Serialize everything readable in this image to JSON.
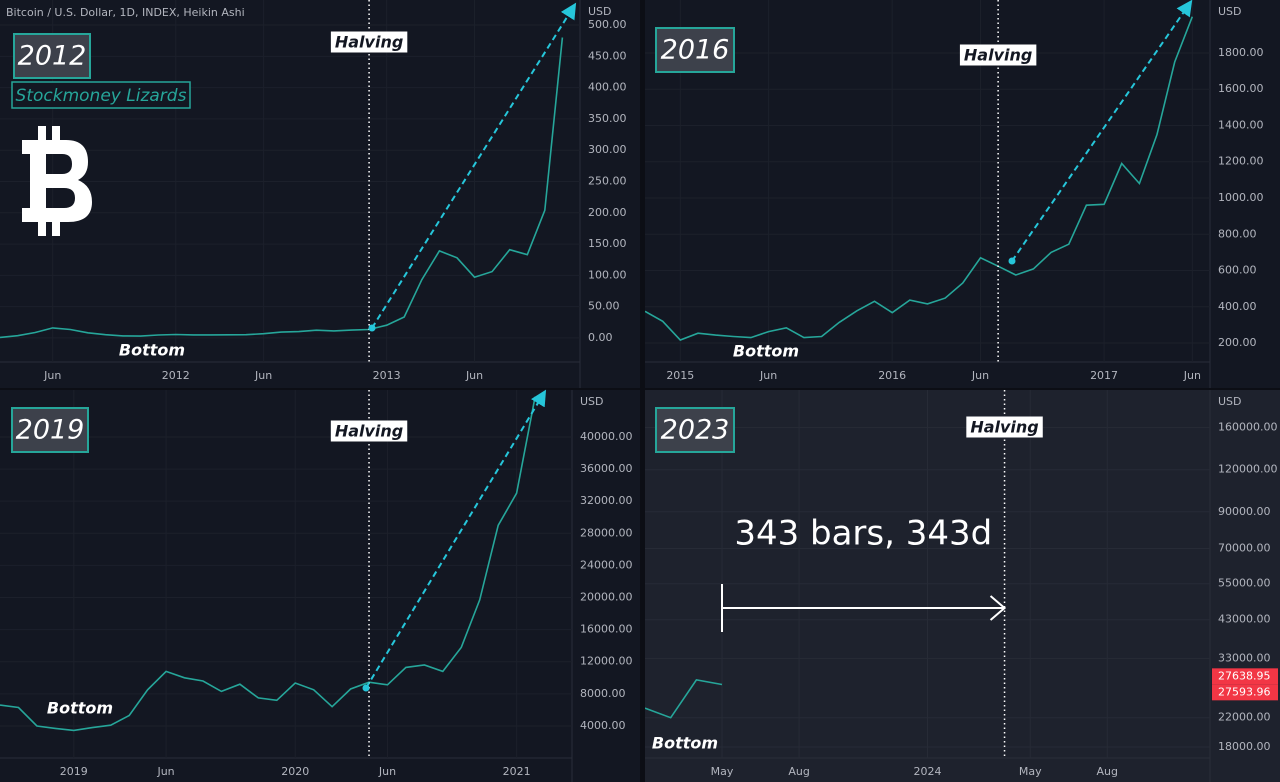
{
  "chart_data": [
    {
      "type": "line",
      "title": "2012",
      "header": "Bitcoin / U.S. Dollar, 1D, INDEX, Heikin Ashi",
      "subtitle": "Stockmoney Lizards",
      "currency": "USD",
      "halving": {
        "text": "Halving",
        "x": "2012-12"
      },
      "bottom_label": "Bottom",
      "color": "#26a69a",
      "grid": true,
      "log_scale": false,
      "x": [
        "2011-03",
        "2011-04",
        "2011-05",
        "2011-06",
        "2011-07",
        "2011-08",
        "2011-09",
        "2011-10",
        "2011-11",
        "2011-12",
        "2012-01",
        "2012-02",
        "2012-03",
        "2012-04",
        "2012-05",
        "2012-06",
        "2012-07",
        "2012-08",
        "2012-09",
        "2012-10",
        "2012-11",
        "2012-12",
        "2013-01",
        "2013-02",
        "2013-03",
        "2013-04",
        "2013-05",
        "2013-06",
        "2013-07",
        "2013-08",
        "2013-09",
        "2013-10",
        "2013-11"
      ],
      "values": [
        0.8,
        3.5,
        8.7,
        16.1,
        13.4,
        8.2,
        5.1,
        3.2,
        3.0,
        4.7,
        5.5,
        4.9,
        4.9,
        5.0,
        5.1,
        6.7,
        9.3,
        10.2,
        12.4,
        11.2,
        12.6,
        13.5,
        20.4,
        33.4,
        93,
        139,
        128,
        97,
        106,
        141,
        133,
        204,
        480
      ],
      "xlim": [
        "2011-03",
        "2013-12"
      ],
      "xticks": [
        {
          "value": "2011-06",
          "label": "Jun"
        },
        {
          "value": "2012-01",
          "label": "2012"
        },
        {
          "value": "2012-06",
          "label": "Jun"
        },
        {
          "value": "2013-01",
          "label": "2013"
        },
        {
          "value": "2013-06",
          "label": "Jun"
        }
      ],
      "ylim": [
        -80,
        540
      ],
      "yticks": [
        {
          "value": 0,
          "label": "0.00"
        },
        {
          "value": 50,
          "label": "50.00"
        },
        {
          "value": 100,
          "label": "100.00"
        },
        {
          "value": 150,
          "label": "150.00"
        },
        {
          "value": 200,
          "label": "200.00"
        },
        {
          "value": 250,
          "label": "250.00"
        },
        {
          "value": 300,
          "label": "300.00"
        },
        {
          "value": 350,
          "label": "350.00"
        },
        {
          "value": 400,
          "label": "400.00"
        },
        {
          "value": 450,
          "label": "450.00"
        },
        {
          "value": 500,
          "label": "500.00"
        }
      ]
    },
    {
      "type": "line",
      "title": "2016",
      "currency": "USD",
      "halving": {
        "text": "Halving",
        "x": "2016-07"
      },
      "bottom_label": "Bottom",
      "color": "#26a69a",
      "grid": true,
      "log_scale": false,
      "x": [
        "2014-11",
        "2014-12",
        "2015-01",
        "2015-02",
        "2015-03",
        "2015-04",
        "2015-05",
        "2015-06",
        "2015-07",
        "2015-08",
        "2015-09",
        "2015-10",
        "2015-11",
        "2015-12",
        "2016-01",
        "2016-02",
        "2016-03",
        "2016-04",
        "2016-05",
        "2016-06",
        "2016-07",
        "2016-08",
        "2016-09",
        "2016-10",
        "2016-11",
        "2016-12",
        "2017-01",
        "2017-02",
        "2017-03",
        "2017-04",
        "2017-05",
        "2017-06"
      ],
      "values": [
        375,
        320,
        217,
        254,
        244,
        236,
        230,
        263,
        284,
        230,
        236,
        314,
        378,
        430,
        368,
        437,
        416,
        448,
        531,
        670,
        624,
        575,
        609,
        700,
        745,
        960,
        965,
        1190,
        1080,
        1350,
        1750,
        2000
      ],
      "xlim": [
        "2014-11",
        "2017-07"
      ],
      "xticks": [
        {
          "value": "2015-01",
          "label": "2015"
        },
        {
          "value": "2015-06",
          "label": "Jun"
        },
        {
          "value": "2016-01",
          "label": "2016"
        },
        {
          "value": "2016-06",
          "label": "Jun"
        },
        {
          "value": "2017-01",
          "label": "2017"
        },
        {
          "value": "2017-06",
          "label": "Jun"
        }
      ],
      "ylim": [
        -48,
        2092
      ],
      "yticks": [
        {
          "value": 200,
          "label": "200.00"
        },
        {
          "value": 400,
          "label": "400.00"
        },
        {
          "value": 600,
          "label": "600.00"
        },
        {
          "value": 800,
          "label": "800.00"
        },
        {
          "value": 1000,
          "label": "1000.00"
        },
        {
          "value": 1200,
          "label": "1200.00"
        },
        {
          "value": 1400,
          "label": "1400.00"
        },
        {
          "value": 1600,
          "label": "1600.00"
        },
        {
          "value": 1800,
          "label": "1800.00"
        }
      ]
    },
    {
      "type": "line",
      "title": "2019",
      "currency": "USD",
      "halving": {
        "text": "Halving",
        "x": "2020-05"
      },
      "bottom_label": "Bottom",
      "color": "#26a69a",
      "grid": true,
      "log_scale": false,
      "x": [
        "2018-09",
        "2018-10",
        "2018-11",
        "2018-12",
        "2019-01",
        "2019-02",
        "2019-03",
        "2019-04",
        "2019-05",
        "2019-06",
        "2019-07",
        "2019-08",
        "2019-09",
        "2019-10",
        "2019-11",
        "2019-12",
        "2020-01",
        "2020-02",
        "2020-03",
        "2020-04",
        "2020-05",
        "2020-06",
        "2020-07",
        "2020-08",
        "2020-09",
        "2020-10",
        "2020-11",
        "2020-12",
        "2021-01",
        "2021-02"
      ],
      "values": [
        6600,
        6300,
        4000,
        3700,
        3450,
        3800,
        4100,
        5300,
        8500,
        10800,
        10000,
        9600,
        8300,
        9200,
        7500,
        7200,
        9350,
        8500,
        6400,
        8600,
        9450,
        9130,
        11300,
        11600,
        10800,
        13800,
        19700,
        29000,
        33000,
        45000
      ],
      "xlim": [
        "2018-09",
        "2021-04"
      ],
      "xticks": [
        {
          "value": "2019-01",
          "label": "2019"
        },
        {
          "value": "2019-06",
          "label": "Jun"
        },
        {
          "value": "2020-01",
          "label": "2020"
        },
        {
          "value": "2020-06",
          "label": "Jun"
        },
        {
          "value": "2021-01",
          "label": "2021"
        }
      ],
      "ylim": [
        -2980,
        45850
      ],
      "yticks": [
        {
          "value": 4000,
          "label": "4000.00"
        },
        {
          "value": 8000,
          "label": "8000.00"
        },
        {
          "value": 12000,
          "label": "12000.00"
        },
        {
          "value": 16000,
          "label": "16000.00"
        },
        {
          "value": 20000,
          "label": "20000.00"
        },
        {
          "value": 24000,
          "label": "24000.00"
        },
        {
          "value": 28000,
          "label": "28000.00"
        },
        {
          "value": 32000,
          "label": "32000.00"
        },
        {
          "value": 36000,
          "label": "36000.00"
        },
        {
          "value": 40000,
          "label": "40000.00"
        }
      ]
    },
    {
      "type": "line",
      "title": "2023",
      "currency": "USD",
      "halving": {
        "text": "Halving",
        "x": "2024-04"
      },
      "bottom_label": "Bottom",
      "measure_label": "343 bars, 343d",
      "color": "#26a69a",
      "grid": true,
      "log_scale": true,
      "x": [
        "2023-02",
        "2023-03",
        "2023-04",
        "2023-05"
      ],
      "values": [
        23500,
        22000,
        28500,
        27600
      ],
      "last_prices": [
        27638.95,
        27593.96
      ],
      "xlim": [
        "2023-02",
        "2024-12"
      ],
      "xticks": [
        {
          "value": "2023-05",
          "label": "May"
        },
        {
          "value": "2023-08",
          "label": "Aug"
        },
        {
          "value": "2024-01",
          "label": "2024"
        },
        {
          "value": "2024-05",
          "label": "May"
        },
        {
          "value": "2024-08",
          "label": "Aug"
        }
      ],
      "ylim": [
        14170,
        207000
      ],
      "yticks": [
        {
          "value": 18000,
          "label": "18000.00"
        },
        {
          "value": 22000,
          "label": "22000.00"
        },
        {
          "value": 33000,
          "label": "33000.00"
        },
        {
          "value": 43000,
          "label": "43000.00"
        },
        {
          "value": 55000,
          "label": "55000.00"
        },
        {
          "value": 70000,
          "label": "70000.00"
        },
        {
          "value": 90000,
          "label": "90000.00"
        },
        {
          "value": 120000,
          "label": "120000.00"
        },
        {
          "value": 160000,
          "label": "160000.00"
        }
      ]
    }
  ]
}
